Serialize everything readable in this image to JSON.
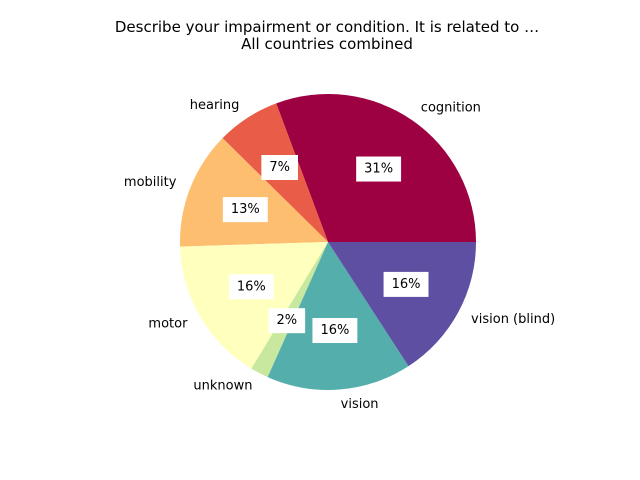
{
  "chart_data": {
    "type": "pie",
    "title_lines": [
      "Describe your impairment or condition. It is related to …",
      "All countries combined"
    ],
    "categories": [
      "cognition",
      "hearing",
      "mobility",
      "motor",
      "unknown",
      "vision",
      "vision (blind)"
    ],
    "values": [
      31,
      7,
      13,
      16,
      2,
      16,
      16
    ],
    "percent_labels": [
      "31%",
      "7%",
      "13%",
      "16%",
      "2%",
      "16%",
      "16%"
    ],
    "colors": [
      "#9e0142",
      "#e95c47",
      "#fdbf6f",
      "#ffffbe",
      "#c7e89e",
      "#54aeac",
      "#5e4fa2"
    ],
    "start_angle_deg": 0,
    "direction": "counterclockwise"
  }
}
